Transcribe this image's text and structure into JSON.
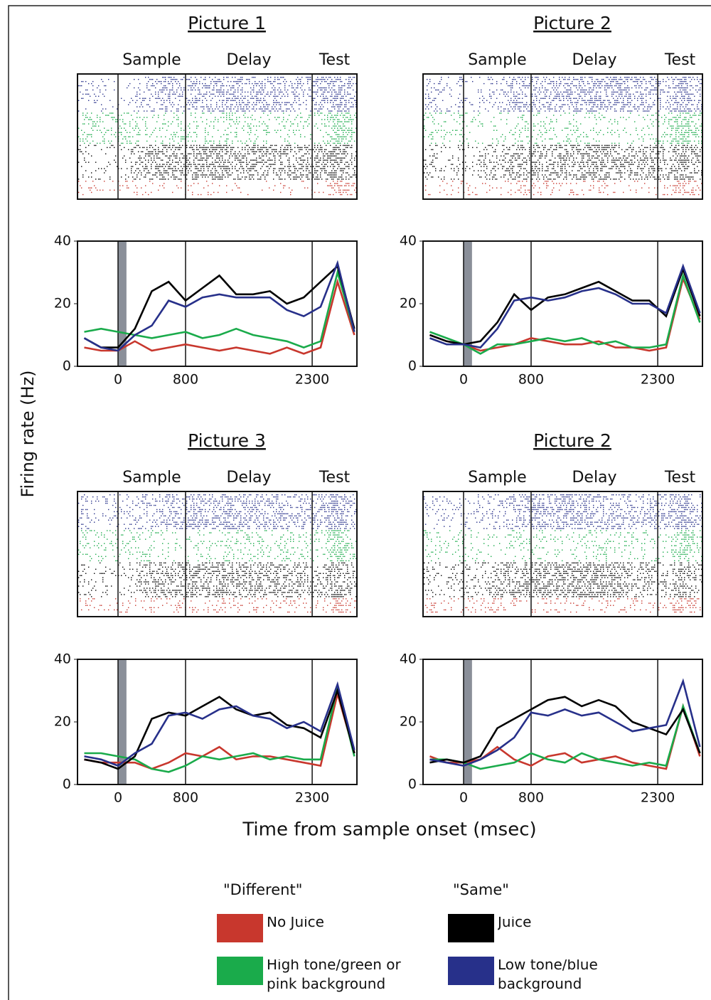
{
  "ylabel": "Firing rate (Hz)",
  "xlabel": "Time from sample onset (msec)",
  "legend_titles": [
    "\"Different\"",
    "\"Same\""
  ],
  "chart_data": [
    {
      "type": "line",
      "title": "Picture 1",
      "epochs": [
        "Sample",
        "Delay",
        "Test"
      ],
      "highlight_span": [
        0,
        100
      ],
      "x": [
        -400,
        -200,
        0,
        200,
        400,
        600,
        800,
        1000,
        1200,
        1400,
        1600,
        1800,
        2000,
        2200,
        2400,
        2600,
        2800
      ],
      "xlim": [
        -480,
        2830
      ],
      "xticks": [
        0,
        800,
        2300
      ],
      "ylim": [
        0,
        40
      ],
      "yticks": [
        0,
        20,
        40
      ],
      "series": [
        {
          "name": "No Juice",
          "color": "#c8372d",
          "values": [
            6,
            5,
            5,
            8,
            5,
            6,
            7,
            6,
            5,
            6,
            5,
            4,
            6,
            4,
            6,
            27,
            10
          ]
        },
        {
          "name": "High tone/green or pink background",
          "color": "#1aab4b",
          "values": [
            11,
            12,
            11,
            10,
            9,
            10,
            11,
            9,
            10,
            12,
            10,
            9,
            8,
            6,
            8,
            30,
            11
          ]
        },
        {
          "name": "Juice",
          "color": "#000000",
          "values": [
            9,
            6,
            6,
            12,
            24,
            27,
            21,
            25,
            29,
            23,
            23,
            24,
            20,
            22,
            27,
            32,
            12
          ]
        },
        {
          "name": "Low tone/blue background",
          "color": "#27308a",
          "values": [
            9,
            6,
            5,
            10,
            13,
            21,
            19,
            22,
            23,
            22,
            22,
            22,
            18,
            16,
            19,
            33,
            11
          ]
        }
      ]
    },
    {
      "type": "line",
      "title": "Picture 2",
      "epochs": [
        "Sample",
        "Delay",
        "Test"
      ],
      "highlight_span": [
        0,
        100
      ],
      "x": [
        -400,
        -200,
        0,
        200,
        400,
        600,
        800,
        1000,
        1200,
        1400,
        1600,
        1800,
        2000,
        2200,
        2400,
        2600,
        2800
      ],
      "xlim": [
        -480,
        2830
      ],
      "xticks": [
        0,
        800,
        2300
      ],
      "ylim": [
        0,
        40
      ],
      "yticks": [
        0,
        20,
        40
      ],
      "series": [
        {
          "name": "No Juice",
          "color": "#c8372d",
          "values": [
            10,
            8,
            7,
            5,
            6,
            7,
            9,
            8,
            7,
            7,
            8,
            6,
            6,
            5,
            6,
            28,
            15
          ]
        },
        {
          "name": "High tone/green or pink background",
          "color": "#1aab4b",
          "values": [
            11,
            9,
            7,
            4,
            7,
            7,
            8,
            9,
            8,
            9,
            7,
            8,
            6,
            6,
            7,
            29,
            14
          ]
        },
        {
          "name": "Juice",
          "color": "#000000",
          "values": [
            10,
            8,
            7,
            8,
            14,
            23,
            18,
            22,
            23,
            25,
            27,
            24,
            21,
            21,
            16,
            31,
            16
          ]
        },
        {
          "name": "Low tone/blue background",
          "color": "#27308a",
          "values": [
            9,
            7,
            7,
            6,
            12,
            21,
            22,
            21,
            22,
            24,
            25,
            23,
            20,
            20,
            17,
            32,
            17
          ]
        }
      ]
    },
    {
      "type": "line",
      "title": "Picture 3",
      "epochs": [
        "Sample",
        "Delay",
        "Test"
      ],
      "highlight_span": [
        0,
        100
      ],
      "x": [
        -400,
        -200,
        0,
        200,
        400,
        600,
        800,
        1000,
        1200,
        1400,
        1600,
        1800,
        2000,
        2200,
        2400,
        2600,
        2800
      ],
      "xlim": [
        -480,
        2830
      ],
      "xticks": [
        0,
        800,
        2300
      ],
      "ylim": [
        0,
        40
      ],
      "yticks": [
        0,
        20,
        40
      ],
      "series": [
        {
          "name": "No Juice",
          "color": "#c8372d",
          "values": [
            8,
            7,
            7,
            7,
            5,
            7,
            10,
            9,
            12,
            8,
            9,
            9,
            8,
            7,
            6,
            29,
            10
          ]
        },
        {
          "name": "High tone/green or pink background",
          "color": "#1aab4b",
          "values": [
            10,
            10,
            9,
            8,
            5,
            4,
            6,
            9,
            8,
            9,
            10,
            8,
            9,
            8,
            8,
            31,
            9
          ]
        },
        {
          "name": "Juice",
          "color": "#000000",
          "values": [
            8,
            7,
            5,
            9,
            21,
            23,
            22,
            25,
            28,
            24,
            22,
            23,
            19,
            18,
            15,
            30,
            10
          ]
        },
        {
          "name": "Low tone/blue background",
          "color": "#27308a",
          "values": [
            9,
            8,
            6,
            10,
            13,
            22,
            23,
            21,
            24,
            25,
            22,
            21,
            18,
            20,
            17,
            32,
            11
          ]
        }
      ]
    },
    {
      "type": "line",
      "title": "Picture 2",
      "epochs": [
        "Sample",
        "Delay",
        "Test"
      ],
      "highlight_span": [
        0,
        100
      ],
      "x": [
        -400,
        -200,
        0,
        200,
        400,
        600,
        800,
        1000,
        1200,
        1400,
        1600,
        1800,
        2000,
        2200,
        2400,
        2600,
        2800
      ],
      "xlim": [
        -480,
        2830
      ],
      "xticks": [
        0,
        800,
        2300
      ],
      "ylim": [
        0,
        40
      ],
      "yticks": [
        0,
        20,
        40
      ],
      "series": [
        {
          "name": "No Juice",
          "color": "#c8372d",
          "values": [
            9,
            7,
            7,
            8,
            12,
            8,
            6,
            9,
            10,
            7,
            8,
            9,
            7,
            6,
            5,
            25,
            9
          ]
        },
        {
          "name": "High tone/green or pink background",
          "color": "#1aab4b",
          "values": [
            8,
            8,
            7,
            5,
            6,
            7,
            10,
            8,
            7,
            10,
            8,
            7,
            6,
            7,
            6,
            25,
            10
          ]
        },
        {
          "name": "Juice",
          "color": "#000000",
          "values": [
            7,
            8,
            7,
            9,
            18,
            21,
            24,
            27,
            28,
            25,
            27,
            25,
            20,
            18,
            16,
            24,
            10
          ]
        },
        {
          "name": "Low tone/blue background",
          "color": "#27308a",
          "values": [
            8,
            7,
            6,
            8,
            11,
            15,
            23,
            22,
            24,
            22,
            23,
            20,
            17,
            18,
            19,
            33,
            12
          ]
        }
      ]
    }
  ]
}
